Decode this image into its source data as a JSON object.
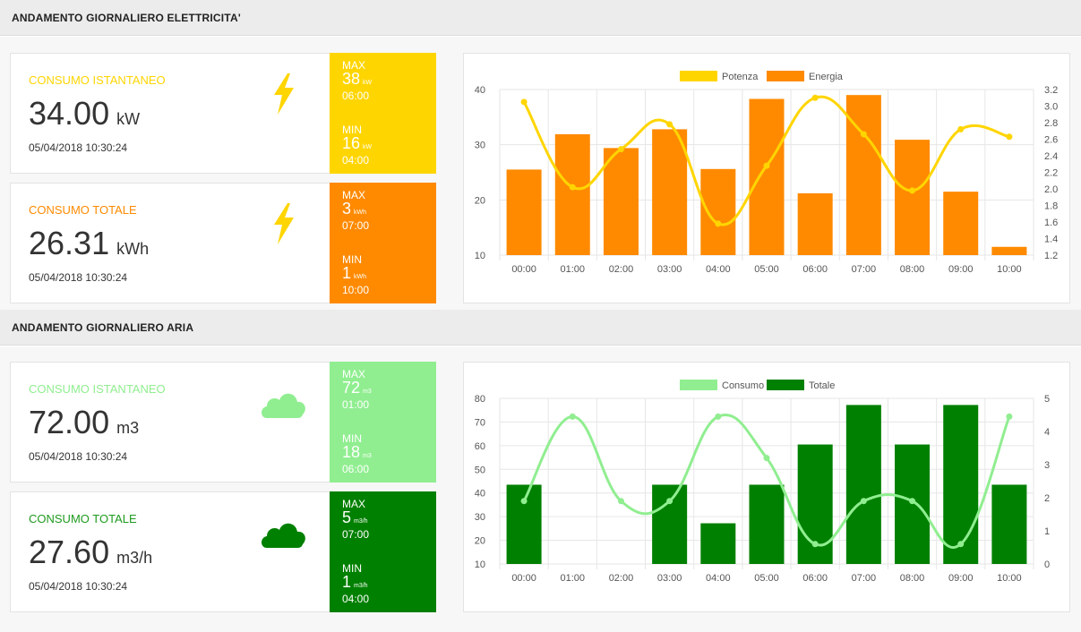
{
  "electricity": {
    "title": "ANDAMENTO GIORNALIERO ELETTRICITA'",
    "instant": {
      "label": "CONSUMO ISTANTANEO",
      "value": "34.00",
      "unit": "kW",
      "timestamp": "05/04/2018 10:30:24",
      "icon": "lightning-icon",
      "color": "#ffd500",
      "max": {
        "label": "MAX",
        "value": "38",
        "unit": "kW",
        "time": "06:00"
      },
      "min": {
        "label": "MIN",
        "value": "16",
        "unit": "kW",
        "time": "04:00"
      }
    },
    "total": {
      "label": "CONSUMO TOTALE",
      "value": "26.31",
      "unit": "kWh",
      "timestamp": "05/04/2018 10:30:24",
      "icon": "lightning-icon",
      "color": "#ff8a00",
      "max": {
        "label": "MAX",
        "value": "3",
        "unit": "kWh",
        "time": "07:00"
      },
      "min": {
        "label": "MIN",
        "value": "1",
        "unit": "kWh",
        "time": "10:00"
      }
    }
  },
  "air": {
    "title": "ANDAMENTO GIORNALIERO ARIA",
    "instant": {
      "label": "CONSUMO ISTANTANEO",
      "value": "72.00",
      "unit": "m3",
      "timestamp": "05/04/2018 10:30:24",
      "icon": "cloud-icon",
      "color": "#90ee90",
      "max": {
        "label": "MAX",
        "value": "72",
        "unit": "m3",
        "time": "01:00"
      },
      "min": {
        "label": "MIN",
        "value": "18",
        "unit": "m3",
        "time": "06:00"
      }
    },
    "total": {
      "label": "CONSUMO TOTALE",
      "value": "27.60",
      "unit": "m3/h",
      "timestamp": "05/04/2018 10:30:24",
      "icon": "cloud-icon",
      "color": "#008000",
      "max": {
        "label": "MAX",
        "value": "5",
        "unit": "m3/h",
        "time": "07:00"
      },
      "min": {
        "label": "MIN",
        "value": "1",
        "unit": "m3/h",
        "time": "04:00"
      }
    }
  },
  "chart_data": [
    {
      "type": "bar",
      "categories": [
        "00:00",
        "01:00",
        "02:00",
        "03:00",
        "04:00",
        "05:00",
        "06:00",
        "07:00",
        "08:00",
        "09:00",
        "10:00"
      ],
      "series": [
        {
          "name": "Potenza",
          "type": "line",
          "axis": "right",
          "color": "#ffd500",
          "values": [
            3.05,
            2.02,
            2.48,
            2.78,
            1.58,
            2.28,
            3.1,
            2.66,
            1.98,
            2.72,
            2.63
          ]
        },
        {
          "name": "Energia",
          "type": "bar",
          "axis": "left",
          "color": "#ff8a00",
          "values": [
            25.5,
            31.9,
            29.4,
            32.8,
            25.6,
            38.3,
            21.2,
            39.0,
            30.9,
            21.5,
            11.5
          ]
        }
      ],
      "ylim_left": [
        10,
        40
      ],
      "yticks_left": [
        10,
        20,
        30,
        40
      ],
      "ylim_right": [
        1.2,
        3.2
      ],
      "yticks_right": [
        1.2,
        1.4,
        1.6,
        1.8,
        2.0,
        2.2,
        2.4,
        2.6,
        2.8,
        3.0,
        3.2
      ],
      "legend": "top-center",
      "grid": true
    },
    {
      "type": "bar",
      "categories": [
        "00:00",
        "01:00",
        "02:00",
        "03:00",
        "04:00",
        "05:00",
        "06:00",
        "07:00",
        "08:00",
        "09:00",
        "10:00"
      ],
      "series": [
        {
          "name": "Consumo",
          "type": "line",
          "axis": "right",
          "color": "#90ee90",
          "values": [
            1.9,
            4.45,
            1.9,
            1.9,
            4.45,
            3.2,
            0.6,
            1.9,
            1.9,
            0.6,
            4.45
          ]
        },
        {
          "name": "Totale",
          "type": "bar",
          "axis": "left",
          "color": "#008000",
          "values": [
            43.5,
            null,
            null,
            43.5,
            27.2,
            43.5,
            60.5,
            77.2,
            60.5,
            77.2,
            43.5
          ]
        }
      ],
      "ylim_left": [
        10,
        80
      ],
      "yticks_left": [
        10,
        20,
        30,
        40,
        50,
        60,
        70,
        80
      ],
      "ylim_right": [
        0,
        5
      ],
      "yticks_right": [
        0,
        1,
        2,
        3,
        4,
        5
      ],
      "legend": "top-center",
      "grid": true
    }
  ]
}
